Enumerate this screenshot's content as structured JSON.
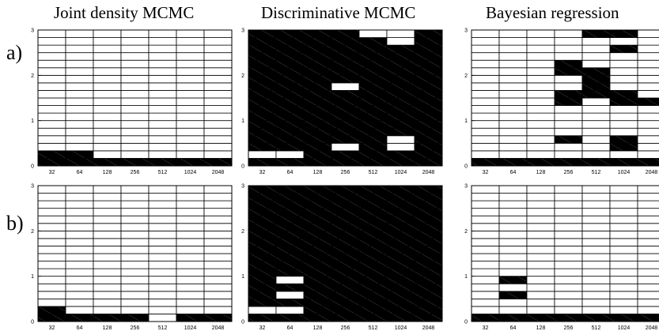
{
  "figure": {
    "column_titles": [
      "Joint density MCMC",
      "Discriminative MCMC",
      "Bayesian regression"
    ],
    "row_labels": [
      "a)",
      "b)"
    ]
  },
  "chart_data": [
    {
      "type": "heatmap",
      "row": "a)",
      "column": "Joint density MCMC",
      "x_categories": [
        "32",
        "64",
        "128",
        "256",
        "512",
        "1024",
        "2048"
      ],
      "y_ticks": [
        "0",
        "1",
        "2",
        "3"
      ],
      "ylim": [
        0,
        3
      ],
      "cells_per_column": 18,
      "filled_from_bottom": [
        [
          0,
          1
        ],
        [
          0,
          1
        ],
        [
          0
        ],
        [
          0
        ],
        [
          0
        ],
        [
          0
        ],
        [
          0
        ]
      ]
    },
    {
      "type": "heatmap",
      "row": "a)",
      "column": "Discriminative MCMC",
      "x_categories": [
        "32",
        "64",
        "128",
        "256",
        "512",
        "1024",
        "2048"
      ],
      "y_ticks": [
        "0",
        "1",
        "2",
        "3"
      ],
      "ylim": [
        0,
        3
      ],
      "cells_per_column": 18,
      "filled_from_bottom": [
        [
          0,
          2,
          3,
          4,
          5,
          6,
          7,
          8,
          9,
          10,
          11,
          12,
          13,
          14,
          15,
          16,
          17
        ],
        [
          0,
          2,
          3,
          4,
          5,
          6,
          7,
          8,
          9,
          10,
          11,
          12,
          13,
          14,
          15,
          16,
          17
        ],
        [
          0,
          1,
          2,
          3,
          4,
          5,
          6,
          7,
          8,
          9,
          10,
          11,
          12,
          13,
          14,
          15,
          16,
          17
        ],
        [
          0,
          1,
          3,
          4,
          5,
          6,
          7,
          8,
          9,
          11,
          12,
          13,
          14,
          15,
          16,
          17
        ],
        [
          0,
          1,
          2,
          3,
          4,
          5,
          6,
          7,
          8,
          9,
          10,
          11,
          12,
          13,
          14,
          15,
          16
        ],
        [
          0,
          1,
          4,
          5,
          6,
          7,
          8,
          9,
          10,
          11,
          12,
          13,
          14,
          15
        ],
        [
          0,
          1,
          2,
          3,
          4,
          5,
          6,
          7,
          8,
          9,
          10,
          11,
          12,
          13,
          14,
          15,
          16,
          17
        ]
      ]
    },
    {
      "type": "heatmap",
      "row": "a)",
      "column": "Bayesian regression",
      "x_categories": [
        "32",
        "64",
        "128",
        "256",
        "512",
        "1024",
        "2048"
      ],
      "y_ticks": [
        "0",
        "1",
        "2",
        "3"
      ],
      "ylim": [
        0,
        3
      ],
      "cells_per_column": 18,
      "filled_from_bottom": [
        [
          0
        ],
        [
          0
        ],
        [
          0
        ],
        [
          0,
          3,
          8,
          9,
          12,
          13
        ],
        [
          0,
          9,
          10,
          11,
          12,
          17
        ],
        [
          0,
          2,
          3,
          8,
          9,
          15,
          17
        ],
        [
          0,
          8
        ]
      ]
    },
    {
      "type": "heatmap",
      "row": "b)",
      "column": "Joint density MCMC",
      "x_categories": [
        "32",
        "64",
        "128",
        "256",
        "512",
        "1024",
        "2048"
      ],
      "y_ticks": [
        "0",
        "1",
        "2",
        "3"
      ],
      "ylim": [
        0,
        3
      ],
      "cells_per_column": 18,
      "filled_from_bottom": [
        [
          0,
          1
        ],
        [
          0
        ],
        [
          0
        ],
        [
          0
        ],
        [],
        [
          0
        ],
        [
          0
        ]
      ]
    },
    {
      "type": "heatmap",
      "row": "b)",
      "column": "Discriminative MCMC",
      "x_categories": [
        "32",
        "64",
        "128",
        "256",
        "512",
        "1024",
        "2048"
      ],
      "y_ticks": [
        "0",
        "1",
        "2",
        "3"
      ],
      "ylim": [
        0,
        3
      ],
      "cells_per_column": 18,
      "filled_from_bottom": [
        [
          0,
          2,
          3,
          4,
          5,
          6,
          7,
          8,
          9,
          10,
          11,
          12,
          13,
          14,
          15,
          16,
          17
        ],
        [
          0,
          2,
          4,
          6,
          7,
          8,
          9,
          10,
          11,
          12,
          13,
          14,
          15,
          16,
          17
        ],
        [
          0,
          1,
          2,
          3,
          4,
          5,
          6,
          7,
          8,
          9,
          10,
          11,
          12,
          13,
          14,
          15,
          16,
          17
        ],
        [
          0,
          1,
          2,
          3,
          4,
          5,
          6,
          7,
          8,
          9,
          10,
          11,
          12,
          13,
          14,
          15,
          16,
          17
        ],
        [
          0,
          1,
          2,
          3,
          4,
          5,
          6,
          7,
          8,
          9,
          10,
          11,
          12,
          13,
          14,
          15,
          16,
          17
        ],
        [
          0,
          1,
          2,
          3,
          4,
          5,
          6,
          7,
          8,
          9,
          10,
          11,
          12,
          13,
          14,
          15,
          16,
          17
        ],
        [
          0,
          1,
          2,
          3,
          4,
          5,
          6,
          7,
          8,
          9,
          10,
          11,
          12,
          13,
          14,
          15,
          16,
          17
        ]
      ]
    },
    {
      "type": "heatmap",
      "row": "b)",
      "column": "Bayesian regression",
      "x_categories": [
        "32",
        "64",
        "128",
        "256",
        "512",
        "1024",
        "2048"
      ],
      "y_ticks": [
        "0",
        "1",
        "2",
        "3"
      ],
      "ylim": [
        0,
        3
      ],
      "cells_per_column": 18,
      "filled_from_bottom": [
        [
          0
        ],
        [
          0,
          3,
          5
        ],
        [
          0
        ],
        [
          0
        ],
        [
          0
        ],
        [
          0
        ],
        [
          0
        ]
      ]
    }
  ]
}
